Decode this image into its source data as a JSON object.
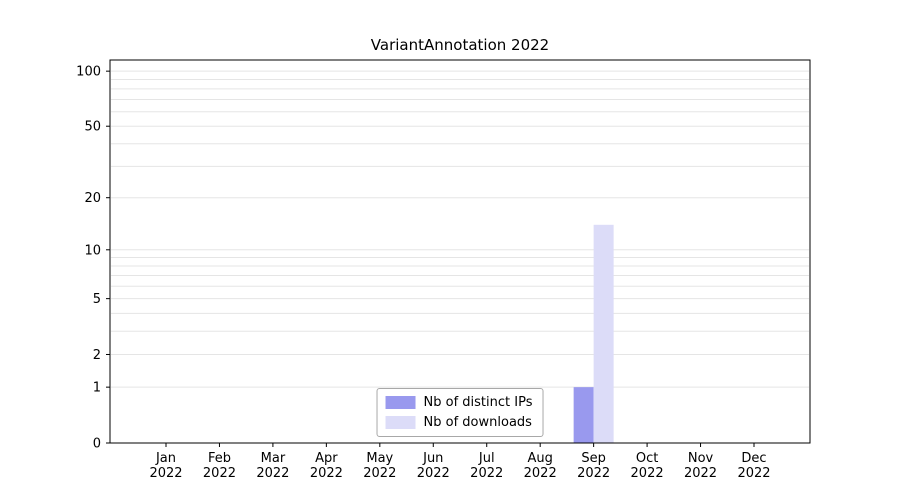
{
  "chart_data": {
    "type": "bar",
    "title": "VariantAnnotation 2022",
    "categories": [
      "Jan",
      "Feb",
      "Mar",
      "Apr",
      "May",
      "Jun",
      "Jul",
      "Aug",
      "Sep",
      "Oct",
      "Nov",
      "Dec"
    ],
    "x_year_label": "2022",
    "series": [
      {
        "name": "Nb of distinct IPs",
        "color": "#9999ee",
        "values": [
          0,
          0,
          0,
          0,
          0,
          0,
          0,
          0,
          1,
          0,
          0,
          0
        ]
      },
      {
        "name": "Nb of downloads",
        "color": "#dcdcf8",
        "values": [
          0,
          0,
          0,
          0,
          0,
          0,
          0,
          0,
          14,
          0,
          0,
          0
        ]
      }
    ],
    "yticks": [
      0,
      1,
      2,
      5,
      10,
      20,
      50,
      100
    ],
    "scale": "log1p",
    "ylim": [
      0,
      115
    ],
    "grid": true,
    "legend_position": "lower center"
  }
}
